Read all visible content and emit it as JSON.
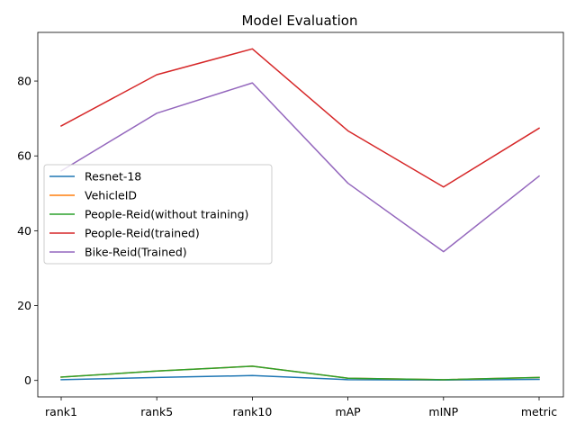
{
  "chart_data": {
    "type": "line",
    "title": "Model Evaluation",
    "xlabel": "",
    "ylabel": "",
    "categories": [
      "rank1",
      "rank5",
      "rank10",
      "mAP",
      "mINP",
      "metric"
    ],
    "ylim": [
      -4.4,
      93
    ],
    "yticks": [
      0,
      20,
      40,
      60,
      80
    ],
    "grid": false,
    "legend": "center-left",
    "series": [
      {
        "name": "Resnet-18",
        "color": "#1f77b4",
        "values": [
          0.2,
          0.8,
          1.3,
          0.2,
          0.1,
          0.3
        ]
      },
      {
        "name": "VehicleID",
        "color": "#ff7f0e",
        "values": [
          0.9,
          2.5,
          3.8,
          0.6,
          0.2,
          0.8
        ]
      },
      {
        "name": "People-Reid(without training)",
        "color": "#2ca02c",
        "values": [
          0.9,
          2.5,
          3.8,
          0.6,
          0.2,
          0.8
        ]
      },
      {
        "name": "People-Reid(trained)",
        "color": "#d62728",
        "values": [
          68.0,
          81.7,
          88.6,
          66.7,
          51.7,
          67.4
        ]
      },
      {
        "name": "Bike-Reid(Trained)",
        "color": "#9467bd",
        "values": [
          56.0,
          71.4,
          79.5,
          52.7,
          34.4,
          54.6
        ]
      }
    ]
  }
}
